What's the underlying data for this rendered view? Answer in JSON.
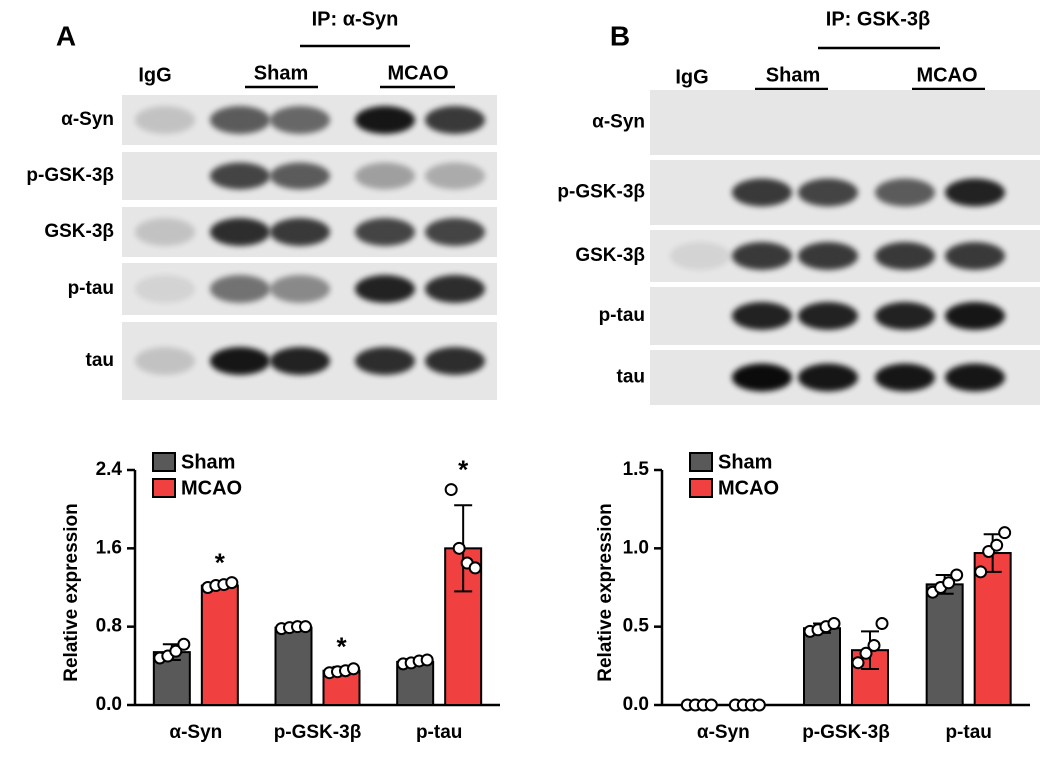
{
  "blots": [
    {
      "panel": "A",
      "ip": "IP: α-Syn",
      "lanes": [
        "IgG",
        "Sham",
        "MCAO"
      ],
      "rows": [
        "α-Syn",
        "p-GSK-3β",
        "GSK-3β",
        "p-tau",
        "tau"
      ]
    },
    {
      "panel": "B",
      "ip": "IP: GSK-3β",
      "lanes": [
        "IgG",
        "Sham",
        "MCAO"
      ],
      "rows": [
        "α-Syn",
        "p-GSK-3β",
        "GSK-3β",
        "p-tau",
        "tau"
      ]
    }
  ],
  "chart_data": [
    {
      "type": "bar",
      "y_label": "Relative expression",
      "categories": [
        "α-Syn",
        "p-GSK-3β",
        "p-tau"
      ],
      "ylim": [
        0,
        2.4
      ],
      "yticks": [
        {
          "value": 0,
          "label": "0.0"
        },
        0.8,
        1.6,
        2.4
      ],
      "series": [
        {
          "name": "Sham",
          "color": "#595959",
          "values": [
            0.54,
            0.79,
            0.44
          ],
          "errors": [
            0.08,
            0.02,
            0.03
          ],
          "points": [
            [
              0.48,
              0.5,
              0.55,
              0.62
            ],
            [
              0.78,
              0.79,
              0.8,
              0.8
            ],
            [
              0.42,
              0.43,
              0.45,
              0.46
            ]
          ]
        },
        {
          "name": "MCAO",
          "color": "#f04040",
          "values": [
            1.22,
            0.35,
            1.6
          ],
          "errors": [
            0.03,
            0.04,
            0.44
          ],
          "points": [
            [
              1.2,
              1.22,
              1.23,
              1.25
            ],
            [
              0.33,
              0.34,
              0.35,
              0.37
            ],
            [
              2.2,
              1.6,
              1.45,
              1.4
            ]
          ],
          "labels": [
            "*",
            "*",
            "*"
          ]
        }
      ]
    },
    {
      "type": "bar",
      "y_label": "Relative expression",
      "categories": [
        "α-Syn",
        "p-GSK-3β",
        "p-tau"
      ],
      "ylim": [
        0,
        1.5
      ],
      "yticks": [
        {
          "value": 0,
          "label": "0.0"
        },
        0.5,
        {
          "value": 1,
          "label": "1.0"
        },
        1.5
      ],
      "series": [
        {
          "name": "Sham",
          "color": "#595959",
          "values": [
            0,
            0.49,
            0.77
          ],
          "errors": [
            0,
            0.03,
            0.06
          ],
          "points": [
            [
              0,
              0,
              0,
              0
            ],
            [
              0.47,
              0.48,
              0.5,
              0.52
            ],
            [
              0.72,
              0.75,
              0.78,
              0.83
            ]
          ]
        },
        {
          "name": "MCAO",
          "color": "#f04040",
          "values": [
            0,
            0.35,
            0.97
          ],
          "errors": [
            0,
            0.12,
            0.12
          ],
          "points": [
            [
              0,
              0,
              0,
              0
            ],
            [
              0.27,
              0.33,
              0.38,
              0.52
            ],
            [
              0.85,
              0.98,
              1.02,
              1.1
            ]
          ]
        }
      ]
    }
  ]
}
